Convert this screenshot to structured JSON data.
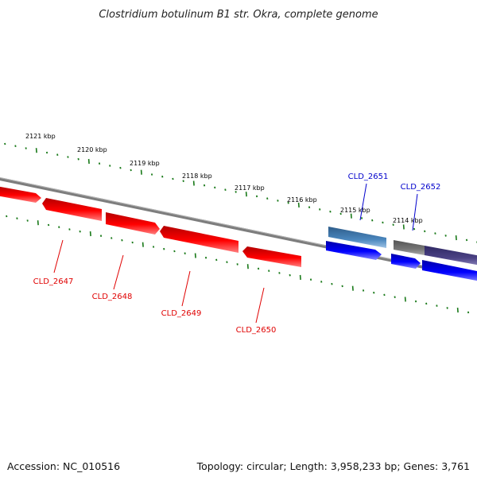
{
  "title": "Clostridium botulinum B1 str. Okra, complete genome",
  "scale_labels": [
    "2121 kbp",
    "2120 kbp",
    "2119 kbp",
    "2118 kbp",
    "2117 kbp",
    "2116 kbp",
    "2115 kbp",
    "2114 kbp"
  ],
  "genes": [
    {
      "label": "CLD_2647",
      "color": "#e00000"
    },
    {
      "label": "CLD_2648",
      "color": "#e00000"
    },
    {
      "label": "CLD_2649",
      "color": "#e00000"
    },
    {
      "label": "CLD_2650",
      "color": "#e00000"
    },
    {
      "label": "CLD_2651",
      "color": "#0000cc"
    },
    {
      "label": "CLD_2652",
      "color": "#0000cc"
    }
  ],
  "colors": {
    "backbone": "#808080",
    "forward_cds": "#ff0000",
    "reverse_cds": "#0000ee",
    "tick": "#1a7a1a",
    "gene_feature": "#3f77a8",
    "dark_feature": "#4b4285",
    "gray_feature": "#707070"
  },
  "footer": {
    "accession": "Accession: NC_010516",
    "summary": "Topology: circular; Length: 3,958,233 bp; Genes: 3,761"
  }
}
